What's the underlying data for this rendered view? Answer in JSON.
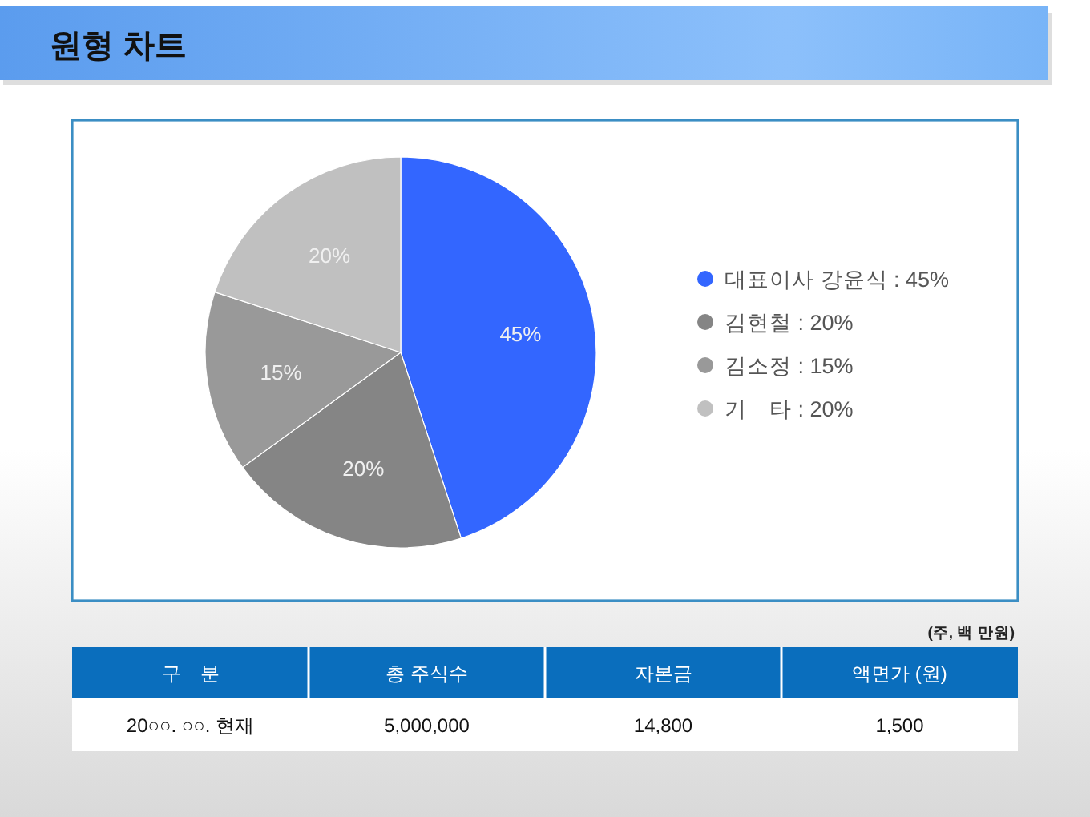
{
  "chart_data": [
    {
      "type": "pie",
      "title": "원형 차트",
      "categories": [
        "대표이사 강윤식 : 45%",
        "김현철 : 20%",
        "김소정 : 15%",
        "기　타 : 20%"
      ],
      "values": [
        45,
        20,
        15,
        20
      ],
      "colors": [
        "#3366ff",
        "#858585",
        "#999999",
        "#c0c0c0"
      ],
      "value_labels": [
        "45%",
        "20%",
        "15%",
        "20%"
      ],
      "legend": "right"
    },
    {
      "type": "other",
      "annotations": [
        "(주, 백 만원)"
      ],
      "categories": [
        "구　분",
        "총 주식수",
        "자본금",
        "액면가 (원)"
      ],
      "cell_labels": [
        [
          "20○○. ○○. 현재",
          "5,000,000",
          "14,800",
          "1,500"
        ]
      ]
    }
  ]
}
